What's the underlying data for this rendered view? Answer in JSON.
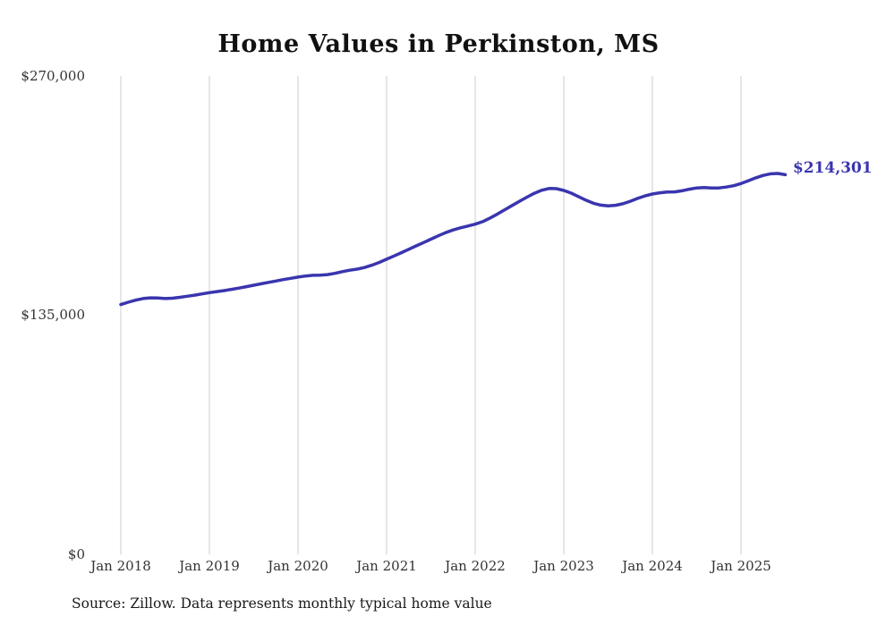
{
  "page": {
    "background": "#ffffff"
  },
  "chart_data": {
    "type": "line",
    "title": "Home Values in Perkinston, MS",
    "series_name": "Typical home value",
    "x_start": "2018-01",
    "x_frequency": "monthly",
    "values": [
      141000,
      142300,
      143500,
      144400,
      144800,
      144700,
      144400,
      144600,
      145100,
      145700,
      146300,
      147000,
      147700,
      148300,
      148900,
      149600,
      150300,
      151100,
      151900,
      152700,
      153500,
      154300,
      155100,
      155800,
      156500,
      157100,
      157500,
      157600,
      157900,
      158600,
      159600,
      160400,
      161000,
      161900,
      163200,
      164800,
      166600,
      168400,
      170300,
      172200,
      174100,
      176000,
      177900,
      179800,
      181600,
      183100,
      184300,
      185300,
      186400,
      187800,
      189800,
      192100,
      194500,
      196900,
      199300,
      201600,
      203800,
      205500,
      206500,
      206400,
      205400,
      203900,
      201900,
      199900,
      198200,
      197100,
      196700,
      197000,
      197900,
      199300,
      200900,
      202300,
      203400,
      204100,
      204500,
      204600,
      205200,
      206100,
      206800,
      207000,
      206800,
      206800,
      207300,
      208100,
      209300,
      210900,
      212500,
      213900,
      214800,
      215000,
      214301
    ],
    "end_label": "$214,301",
    "last_value": 214301,
    "ylim": [
      0,
      270000
    ],
    "yticks": [
      {
        "value": 0,
        "label": "$0"
      },
      {
        "value": 135000,
        "label": "$135,000"
      },
      {
        "value": 270000,
        "label": "$270,000"
      }
    ],
    "xticks": [
      "Jan 2018",
      "Jan 2019",
      "Jan 2020",
      "Jan 2021",
      "Jan 2022",
      "Jan 2023",
      "Jan 2024",
      "Jan 2025"
    ],
    "grid": "vertical",
    "grid_color": "#cccccc",
    "line_color": "#3a35ae",
    "source": "Source: Zillow. Data represents monthly typical home value"
  }
}
